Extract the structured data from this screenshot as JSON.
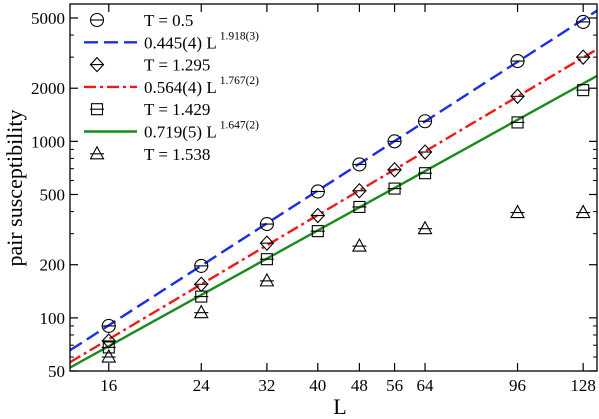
{
  "chart_data": {
    "type": "scatter",
    "title": "",
    "xlabel": "L",
    "ylabel": "pair susceptibility",
    "xscale": "log",
    "yscale": "log",
    "xlim": [
      13.5,
      136
    ],
    "ylim": [
      50,
      6000
    ],
    "xticks": [
      {
        "value": 16,
        "label": "16"
      },
      {
        "value": 24,
        "label": "24"
      },
      {
        "value": 32,
        "label": "32"
      },
      {
        "value": 40,
        "label": "40"
      },
      {
        "value": 48,
        "label": "48"
      },
      {
        "value": 56,
        "label": "56"
      },
      {
        "value": 64,
        "label": "64"
      },
      {
        "value": 96,
        "label": "96"
      },
      {
        "value": 128,
        "label": "128"
      }
    ],
    "yticks": [
      {
        "value": 50,
        "label": "50"
      },
      {
        "value": 100,
        "label": "100"
      },
      {
        "value": 200,
        "label": "200"
      },
      {
        "value": 500,
        "label": "500"
      },
      {
        "value": 1000,
        "label": "1000"
      },
      {
        "value": 2000,
        "label": "2000"
      },
      {
        "value": 5000,
        "label": "5000"
      }
    ],
    "grid": false,
    "legend_position": "top-left",
    "series": [
      {
        "name": "T = 0.5",
        "kind": "points",
        "marker": "circle",
        "color": "#000000",
        "x": [
          16,
          24,
          32,
          40,
          48,
          56,
          64,
          96,
          128
        ],
        "y": [
          90,
          197,
          340,
          520,
          740,
          1000,
          1300,
          2850,
          4750
        ]
      },
      {
        "name": "0.445(4) L",
        "sup": "1.918(3)",
        "kind": "line",
        "style": "dashed",
        "color": "#1a2ee6",
        "coef": 0.445,
        "exponent": 1.918
      },
      {
        "name": "T = 1.295",
        "kind": "points",
        "marker": "diamond",
        "color": "#000000",
        "x": [
          16,
          24,
          32,
          40,
          48,
          56,
          64,
          96,
          128
        ],
        "y": [
          74,
          155,
          265,
          380,
          525,
          690,
          870,
          1800,
          3000
        ]
      },
      {
        "name": "0.564(4) L",
        "sup": "1.767(2)",
        "kind": "line",
        "style": "dashdot",
        "color": "#ee1a1a",
        "coef": 0.564,
        "exponent": 1.767
      },
      {
        "name": "T = 1.429",
        "kind": "points",
        "marker": "square",
        "color": "#000000",
        "x": [
          16,
          24,
          32,
          40,
          48,
          56,
          64,
          96,
          128
        ],
        "y": [
          68,
          132,
          215,
          310,
          425,
          540,
          660,
          1280,
          1950
        ]
      },
      {
        "name": "0.719(5) L",
        "sup": "1.647(2)",
        "kind": "line",
        "style": "solid",
        "color": "#1a8a1a",
        "coef": 0.719,
        "exponent": 1.647
      },
      {
        "name": "T = 1.538",
        "kind": "points",
        "marker": "triangle",
        "color": "#000000",
        "x": [
          16,
          24,
          32,
          48,
          64,
          96,
          128
        ],
        "y": [
          60,
          107,
          162,
          255,
          320,
          395,
          395
        ]
      }
    ]
  }
}
